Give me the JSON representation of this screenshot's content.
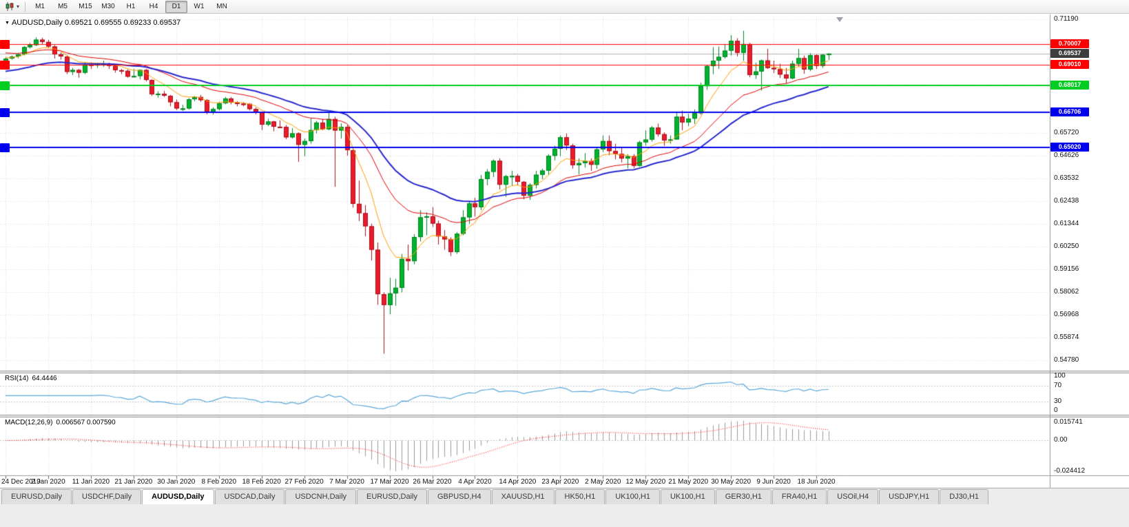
{
  "toolbar": {
    "chart_type_button": {
      "icon": "candlestick-chart-icon",
      "caret": "▾"
    },
    "timeframes": [
      "M1",
      "M5",
      "M15",
      "M30",
      "H1",
      "H4",
      "D1",
      "W1",
      "MN"
    ],
    "active_timeframe": "D1"
  },
  "chart_header": {
    "menu_marker": "▼",
    "title": "AUDUSD,Daily",
    "ohlc_text": "0.69521 0.69555 0.69233 0.69537"
  },
  "price_axis": {
    "labels": [
      "0.71190",
      "0.65720",
      "0.64626",
      "0.63532",
      "0.62438",
      "0.61344",
      "0.60250",
      "0.59156",
      "0.58062",
      "0.56968",
      "0.55874",
      "0.54780"
    ]
  },
  "current_price_badge": {
    "label": "0.69537",
    "value": 0.69537,
    "bg": "#3d3d3d",
    "line_color": "#b0b0b0"
  },
  "horizontal_lines": [
    {
      "label": "0.70007",
      "value": 0.70007,
      "color": "#ff0000",
      "width": 1
    },
    {
      "label": "0.69010",
      "value": 0.6901,
      "color": "#ff0000",
      "width": 1
    },
    {
      "label": "0.68017",
      "value": 0.68017,
      "color": "#00cc22",
      "width": 2
    },
    {
      "label": "0.66706",
      "value": 0.66706,
      "color": "#0000ee",
      "width": 2
    },
    {
      "label": "0.65020",
      "value": 0.6502,
      "color": "#0000ee",
      "width": 2
    }
  ],
  "date_axis": {
    "labels": [
      "24 Dec 2019",
      "2 Jan 2020",
      "11 Jan 2020",
      "21 Jan 2020",
      "30 Jan 2020",
      "8 Feb 2020",
      "18 Feb 2020",
      "27 Feb 2020",
      "7 Mar 2020",
      "17 Mar 2020",
      "26 Mar 2020",
      "4 Apr 2020",
      "14 Apr 2020",
      "23 Apr 2020",
      "2 May 2020",
      "12 May 2020",
      "21 May 2020",
      "30 May 2020",
      "9 Jun 2020",
      "18 Jun 2020"
    ]
  },
  "rsi_pane": {
    "label": "RSI(14)",
    "current": "64.4446",
    "axis_labels": [
      "100",
      "70",
      "30",
      "0"
    ],
    "levels": [
      70,
      30
    ],
    "line_color": "#57a7db"
  },
  "macd_pane": {
    "label": "MACD(12,26,9)",
    "current": "0.006567 0.007590",
    "axis_labels": [
      "0.015741",
      "0.00",
      "-0.024412"
    ],
    "histogram_color": "#9b9b9b",
    "signal_color": "#ff0000"
  },
  "tabs": {
    "items": [
      {
        "label": "EURUSD,Daily",
        "active": false
      },
      {
        "label": "USDCHF,Daily",
        "active": false
      },
      {
        "label": "AUDUSD,Daily",
        "active": true
      },
      {
        "label": "USDCAD,Daily",
        "active": false
      },
      {
        "label": "USDCNH,Daily",
        "active": false
      },
      {
        "label": "EURUSD,Daily",
        "active": false
      },
      {
        "label": "GBPUSD,H4",
        "active": false
      },
      {
        "label": "XAUUSD,H1",
        "active": false
      },
      {
        "label": "HK50,H1",
        "active": false
      },
      {
        "label": "UK100,H1",
        "active": false
      },
      {
        "label": "UK100,H1",
        "active": false
      },
      {
        "label": "GER30,H1",
        "active": false
      },
      {
        "label": "FRA40,H1",
        "active": false
      },
      {
        "label": "USOil,H4",
        "active": false
      },
      {
        "label": "USDJPY,H1",
        "active": false
      },
      {
        "label": "DJ30,H1",
        "active": false
      }
    ]
  },
  "chart_data": {
    "type": "candlestick",
    "symbol": "AUDUSD",
    "period": "Daily",
    "last": {
      "open": 0.69521,
      "high": 0.69555,
      "low": 0.69233,
      "close": 0.69537
    },
    "y_max": 0.7119,
    "y_min": 0.5478,
    "grid_step": 0.01094,
    "bull_color": "#00b22d",
    "bull_border": "#00821f",
    "bear_color": "#ea1c2c",
    "bear_border": "#a8101c",
    "moving_averages": [
      {
        "name": "fast-ma",
        "period": 8,
        "color": "#ff9e00",
        "width": 1,
        "seed": 0.6935
      },
      {
        "name": "mid-ma",
        "period": 21,
        "color": "#e60000",
        "width": 1,
        "seed": 0.696
      },
      {
        "name": "slow-ma",
        "period": 34,
        "color": "#2727cf",
        "width": 2,
        "seed": 0.6865
      }
    ],
    "rsi_period": 14,
    "macd": {
      "fast": 12,
      "slow": 26,
      "signal_period": 9
    },
    "candles": [
      [
        0.692,
        0.6938,
        0.691,
        0.693
      ],
      [
        0.693,
        0.6945,
        0.6925,
        0.694
      ],
      [
        0.694,
        0.6955,
        0.6932,
        0.695
      ],
      [
        0.695,
        0.699,
        0.6945,
        0.6985
      ],
      [
        0.6985,
        0.7005,
        0.6978,
        0.6995
      ],
      [
        0.6995,
        0.7032,
        0.699,
        0.7021
      ],
      [
        0.7021,
        0.703,
        0.7,
        0.701
      ],
      [
        0.701,
        0.702,
        0.698,
        0.6988
      ],
      [
        0.6988,
        0.6995,
        0.693,
        0.695
      ],
      [
        0.695,
        0.696,
        0.6925,
        0.694
      ],
      [
        0.694,
        0.6945,
        0.6855,
        0.6866
      ],
      [
        0.6866,
        0.6885,
        0.685,
        0.6875
      ],
      [
        0.6875,
        0.688,
        0.6838,
        0.6862
      ],
      [
        0.6862,
        0.691,
        0.6855,
        0.6901
      ],
      [
        0.6901,
        0.6912,
        0.688,
        0.69
      ],
      [
        0.69,
        0.691,
        0.6885,
        0.6903
      ],
      [
        0.6903,
        0.692,
        0.689,
        0.6904
      ],
      [
        0.6904,
        0.691,
        0.688,
        0.6895
      ],
      [
        0.6895,
        0.69,
        0.6862,
        0.6874
      ],
      [
        0.6874,
        0.688,
        0.6855,
        0.6871
      ],
      [
        0.6871,
        0.6878,
        0.6838,
        0.6843
      ],
      [
        0.6843,
        0.688,
        0.684,
        0.6846
      ],
      [
        0.6846,
        0.6878,
        0.683,
        0.6875
      ],
      [
        0.6875,
        0.688,
        0.682,
        0.6827
      ],
      [
        0.6827,
        0.683,
        0.675,
        0.6758
      ],
      [
        0.6758,
        0.6772,
        0.6742,
        0.6761
      ],
      [
        0.6761,
        0.6775,
        0.6745,
        0.6751
      ],
      [
        0.6751,
        0.6755,
        0.67,
        0.672
      ],
      [
        0.672,
        0.6733,
        0.6682,
        0.669
      ],
      [
        0.669,
        0.6708,
        0.6678,
        0.669
      ],
      [
        0.669,
        0.674,
        0.6685,
        0.6734
      ],
      [
        0.6734,
        0.675,
        0.6725,
        0.6745
      ],
      [
        0.6745,
        0.6755,
        0.6722,
        0.673
      ],
      [
        0.673,
        0.6735,
        0.6662,
        0.6672
      ],
      [
        0.6672,
        0.6695,
        0.666,
        0.6687
      ],
      [
        0.6687,
        0.6722,
        0.668,
        0.6715
      ],
      [
        0.6715,
        0.6745,
        0.671,
        0.6738
      ],
      [
        0.6738,
        0.6745,
        0.671,
        0.6718
      ],
      [
        0.6718,
        0.6725,
        0.67,
        0.6713
      ],
      [
        0.6713,
        0.672,
        0.67,
        0.6712
      ],
      [
        0.6712,
        0.6715,
        0.668,
        0.6687
      ],
      [
        0.6687,
        0.6695,
        0.6662,
        0.6672
      ],
      [
        0.6672,
        0.6675,
        0.6586,
        0.6612
      ],
      [
        0.6612,
        0.664,
        0.6605,
        0.6627
      ],
      [
        0.6627,
        0.663,
        0.658,
        0.6602
      ],
      [
        0.6602,
        0.6632,
        0.6595,
        0.6601
      ],
      [
        0.6601,
        0.661,
        0.6542,
        0.6551
      ],
      [
        0.6551,
        0.6595,
        0.6545,
        0.657
      ],
      [
        0.657,
        0.6575,
        0.6433,
        0.6515
      ],
      [
        0.6515,
        0.6545,
        0.646,
        0.6533
      ],
      [
        0.6533,
        0.6645,
        0.652,
        0.6586
      ],
      [
        0.6586,
        0.663,
        0.657,
        0.6622
      ],
      [
        0.6622,
        0.664,
        0.6585,
        0.659
      ],
      [
        0.659,
        0.667,
        0.6585,
        0.6639
      ],
      [
        0.6639,
        0.665,
        0.6313,
        0.6584
      ],
      [
        0.6584,
        0.6618,
        0.6545,
        0.6601
      ],
      [
        0.6601,
        0.661,
        0.6463,
        0.6489
      ],
      [
        0.6489,
        0.65,
        0.6213,
        0.6231
      ],
      [
        0.6231,
        0.6343,
        0.6148,
        0.6186
      ],
      [
        0.6186,
        0.6225,
        0.6075,
        0.6123
      ],
      [
        0.6123,
        0.6135,
        0.5958,
        0.601
      ],
      [
        0.601,
        0.6045,
        0.5745,
        0.5796
      ],
      [
        0.5796,
        0.5805,
        0.551,
        0.5744
      ],
      [
        0.5744,
        0.5875,
        0.57,
        0.58
      ],
      [
        0.58,
        0.587,
        0.574,
        0.5827
      ],
      [
        0.5827,
        0.599,
        0.5805,
        0.5966
      ],
      [
        0.5966,
        0.6035,
        0.591,
        0.5955
      ],
      [
        0.5955,
        0.6085,
        0.594,
        0.6071
      ],
      [
        0.6071,
        0.62,
        0.605,
        0.6166
      ],
      [
        0.6166,
        0.619,
        0.608,
        0.6171
      ],
      [
        0.6171,
        0.6215,
        0.612,
        0.6136
      ],
      [
        0.6136,
        0.615,
        0.6035,
        0.6074
      ],
      [
        0.6074,
        0.6105,
        0.601,
        0.606
      ],
      [
        0.606,
        0.607,
        0.598,
        0.5999
      ],
      [
        0.5999,
        0.6095,
        0.599,
        0.6087
      ],
      [
        0.6087,
        0.62,
        0.608,
        0.6166
      ],
      [
        0.6166,
        0.6245,
        0.6135,
        0.6233
      ],
      [
        0.6233,
        0.626,
        0.617,
        0.6215
      ],
      [
        0.6215,
        0.637,
        0.62,
        0.635
      ],
      [
        0.635,
        0.6398,
        0.632,
        0.6385
      ],
      [
        0.6385,
        0.6445,
        0.636,
        0.6438
      ],
      [
        0.6438,
        0.645,
        0.63,
        0.6323
      ],
      [
        0.6323,
        0.637,
        0.6265,
        0.6364
      ],
      [
        0.6364,
        0.639,
        0.632,
        0.6365
      ],
      [
        0.6365,
        0.6375,
        0.632,
        0.6337
      ],
      [
        0.6337,
        0.634,
        0.6253,
        0.627
      ],
      [
        0.627,
        0.633,
        0.625,
        0.6322
      ],
      [
        0.6322,
        0.639,
        0.6305,
        0.6371
      ],
      [
        0.6371,
        0.64,
        0.635,
        0.6391
      ],
      [
        0.6391,
        0.647,
        0.637,
        0.6462
      ],
      [
        0.6462,
        0.651,
        0.644,
        0.6496
      ],
      [
        0.6496,
        0.656,
        0.646,
        0.6551
      ],
      [
        0.6551,
        0.657,
        0.649,
        0.6512
      ],
      [
        0.6512,
        0.652,
        0.64,
        0.6417
      ],
      [
        0.6417,
        0.645,
        0.6372,
        0.6427
      ],
      [
        0.6427,
        0.6475,
        0.6405,
        0.6437
      ],
      [
        0.6437,
        0.645,
        0.639,
        0.6419
      ],
      [
        0.6419,
        0.6505,
        0.64,
        0.6493
      ],
      [
        0.6493,
        0.656,
        0.648,
        0.6533
      ],
      [
        0.6533,
        0.656,
        0.6465,
        0.6485
      ],
      [
        0.6485,
        0.652,
        0.6445,
        0.6471
      ],
      [
        0.6471,
        0.6505,
        0.643,
        0.6449
      ],
      [
        0.6449,
        0.647,
        0.6402,
        0.646
      ],
      [
        0.646,
        0.647,
        0.6403,
        0.6414
      ],
      [
        0.6414,
        0.6535,
        0.641,
        0.6527
      ],
      [
        0.6527,
        0.6585,
        0.651,
        0.654
      ],
      [
        0.654,
        0.6605,
        0.653,
        0.6598
      ],
      [
        0.6598,
        0.6617,
        0.6555,
        0.6566
      ],
      [
        0.6566,
        0.6575,
        0.651,
        0.6536
      ],
      [
        0.6536,
        0.656,
        0.652,
        0.6541
      ],
      [
        0.6541,
        0.6675,
        0.654,
        0.665
      ],
      [
        0.665,
        0.668,
        0.6585,
        0.6623
      ],
      [
        0.6623,
        0.6665,
        0.6605,
        0.6641
      ],
      [
        0.6641,
        0.6685,
        0.6615,
        0.6667
      ],
      [
        0.6667,
        0.6815,
        0.666,
        0.6797
      ],
      [
        0.6797,
        0.69,
        0.678,
        0.6894
      ],
      [
        0.6894,
        0.6985,
        0.6855,
        0.692
      ],
      [
        0.692,
        0.6988,
        0.688,
        0.6938
      ],
      [
        0.6938,
        0.7,
        0.693,
        0.6968
      ],
      [
        0.6968,
        0.7043,
        0.6945,
        0.7015
      ],
      [
        0.7015,
        0.7028,
        0.694,
        0.6958
      ],
      [
        0.6958,
        0.7064,
        0.692,
        0.7
      ],
      [
        0.7,
        0.7005,
        0.684,
        0.6851
      ],
      [
        0.6851,
        0.691,
        0.6832,
        0.6868
      ],
      [
        0.6868,
        0.6925,
        0.6776,
        0.6921
      ],
      [
        0.6921,
        0.6977,
        0.688,
        0.6885
      ],
      [
        0.6885,
        0.692,
        0.686,
        0.6879
      ],
      [
        0.6879,
        0.6905,
        0.6837,
        0.6853
      ],
      [
        0.6853,
        0.6885,
        0.681,
        0.6834
      ],
      [
        0.6834,
        0.692,
        0.683,
        0.6905
      ],
      [
        0.6905,
        0.6977,
        0.689,
        0.6932
      ],
      [
        0.6932,
        0.6945,
        0.6857,
        0.6877
      ],
      [
        0.6877,
        0.6956,
        0.687,
        0.6946
      ],
      [
        0.6946,
        0.695,
        0.688,
        0.6895
      ],
      [
        0.6895,
        0.6952,
        0.6885,
        0.6948
      ],
      [
        0.69521,
        0.69555,
        0.69233,
        0.69537
      ]
    ]
  }
}
